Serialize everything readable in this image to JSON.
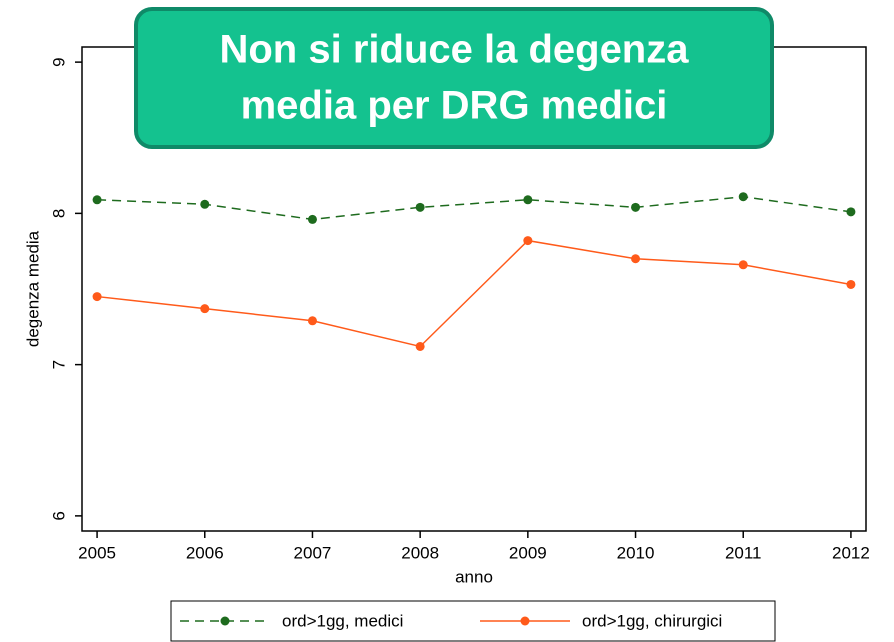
{
  "chart_data": {
    "type": "line",
    "title": [
      "Non si riduce la degenza",
      "media per DRG medici"
    ],
    "xlabel": "anno",
    "ylabel": "degenza media",
    "x": [
      2005,
      2006,
      2007,
      2008,
      2009,
      2010,
      2011,
      2012
    ],
    "series": [
      {
        "name": "ord>1gg, medici",
        "color": "#1e6b1e",
        "dash": true,
        "values": [
          8.09,
          8.06,
          7.96,
          8.04,
          8.09,
          8.04,
          8.11,
          8.01
        ]
      },
      {
        "name": "ord>1gg, chirurgici",
        "color": "#ff5a1a",
        "dash": false,
        "values": [
          7.45,
          7.37,
          7.29,
          7.12,
          7.82,
          7.7,
          7.66,
          7.53
        ]
      }
    ],
    "xlim": [
      2004.86,
      2012.14
    ],
    "xticks": [
      2005,
      2006,
      2007,
      2008,
      2009,
      2010,
      2011,
      2012
    ],
    "ylim": [
      5.9,
      9.1
    ],
    "yticks": [
      6,
      7,
      8,
      9
    ],
    "grid": false,
    "legend": "bottom"
  }
}
